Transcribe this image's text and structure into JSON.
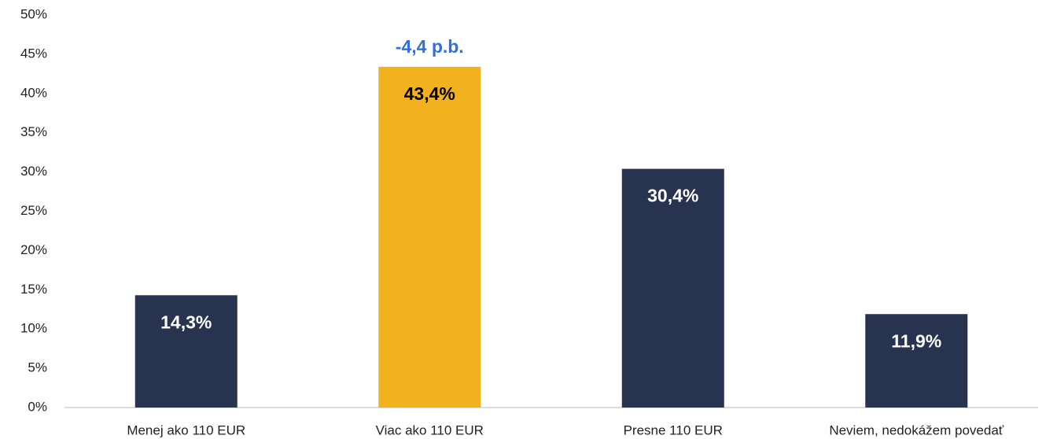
{
  "chart_data": {
    "type": "bar",
    "categories": [
      "Menej ako 110 EUR",
      "Viac ako 110 EUR",
      "Presne 110 EUR",
      "Neviem, nedokážem povedať"
    ],
    "values": [
      14.3,
      43.4,
      30.4,
      11.9
    ],
    "value_labels": [
      "14,3%",
      "43,4%",
      "30,4%",
      "11,9%"
    ],
    "colors": [
      "#283350",
      "#f2b220",
      "#283350",
      "#283350"
    ],
    "value_label_colors": [
      "#ffffff",
      "#000000",
      "#ffffff",
      "#ffffff"
    ],
    "ylim": [
      0,
      50
    ],
    "yticks": [
      {
        "value": 0,
        "label": "0%"
      },
      {
        "value": 5,
        "label": "5%"
      },
      {
        "value": 10,
        "label": "10%"
      },
      {
        "value": 15,
        "label": "15%"
      },
      {
        "value": 20,
        "label": "20%"
      },
      {
        "value": 25,
        "label": "25%"
      },
      {
        "value": 30,
        "label": "30%"
      },
      {
        "value": 35,
        "label": "35%"
      },
      {
        "value": 40,
        "label": "40%"
      },
      {
        "value": 45,
        "label": "45%"
      },
      {
        "value": 50,
        "label": "50%"
      }
    ],
    "grid": false,
    "annotations": [
      {
        "text": "-4,4 p.b.",
        "x": "Viac ako 110 EUR",
        "color": "#2f6fe0"
      }
    ]
  }
}
